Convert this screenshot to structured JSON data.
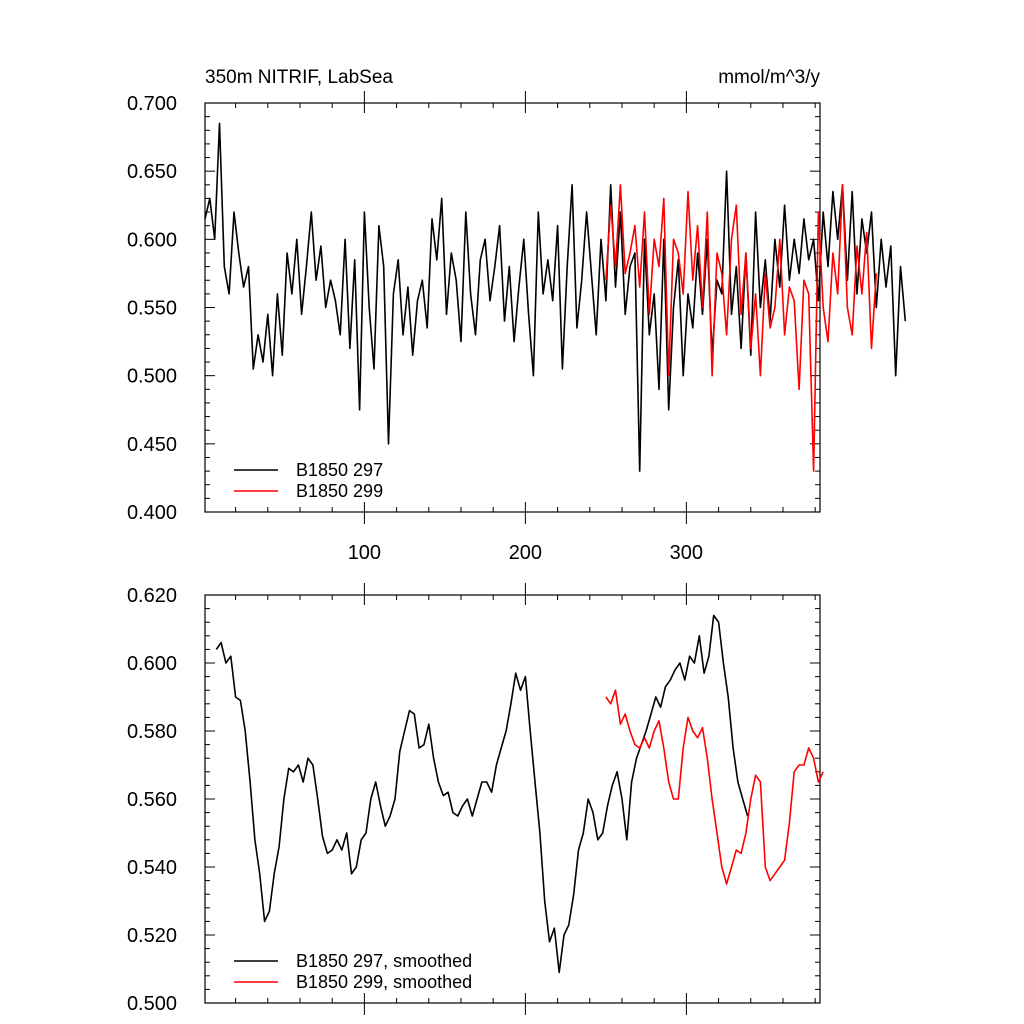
{
  "chart_data": [
    {
      "type": "line",
      "title": "350m NITRIF, LabSea",
      "units": "mmol/m^3/y",
      "xlim": [
        1,
        383
      ],
      "ylim": [
        0.4,
        0.7
      ],
      "xticks": [
        100,
        200,
        300
      ],
      "xtick_labels": [
        "100",
        "200",
        "300"
      ],
      "yticks": [
        0.4,
        0.45,
        0.5,
        0.55,
        0.6,
        0.65,
        0.7
      ],
      "ytick_labels": [
        "0.400",
        "0.450",
        "0.500",
        "0.550",
        "0.600",
        "0.650",
        "0.700"
      ],
      "legend_position": "bottom-left",
      "series": [
        {
          "name": "B1850 297",
          "color": "#000000",
          "x_start": 1,
          "x_step": 3,
          "values": [
            0.615,
            0.63,
            0.6,
            0.685,
            0.58,
            0.56,
            0.62,
            0.59,
            0.565,
            0.58,
            0.505,
            0.53,
            0.51,
            0.545,
            0.5,
            0.56,
            0.515,
            0.59,
            0.56,
            0.6,
            0.545,
            0.58,
            0.62,
            0.57,
            0.595,
            0.55,
            0.57,
            0.555,
            0.53,
            0.6,
            0.52,
            0.585,
            0.475,
            0.62,
            0.55,
            0.505,
            0.61,
            0.58,
            0.45,
            0.56,
            0.585,
            0.53,
            0.565,
            0.515,
            0.555,
            0.57,
            0.535,
            0.615,
            0.585,
            0.63,
            0.545,
            0.59,
            0.57,
            0.525,
            0.62,
            0.56,
            0.53,
            0.585,
            0.6,
            0.555,
            0.58,
            0.61,
            0.54,
            0.58,
            0.525,
            0.565,
            0.6,
            0.545,
            0.5,
            0.62,
            0.56,
            0.585,
            0.555,
            0.61,
            0.505,
            0.58,
            0.64,
            0.535,
            0.57,
            0.62,
            0.575,
            0.53,
            0.6,
            0.555,
            0.64,
            0.565,
            0.62,
            0.545,
            0.58,
            0.59,
            0.43,
            0.6,
            0.53,
            0.56,
            0.49,
            0.6,
            0.475,
            0.55,
            0.585,
            0.5,
            0.56,
            0.535,
            0.59,
            0.545,
            0.6,
            0.515,
            0.57,
            0.56,
            0.65,
            0.545,
            0.58,
            0.52,
            0.59,
            0.515,
            0.62,
            0.55,
            0.585,
            0.54,
            0.6,
            0.565,
            0.625,
            0.57,
            0.6,
            0.575,
            0.615,
            0.585,
            0.6,
            0.555,
            0.62,
            0.58,
            0.635,
            0.6,
            0.64,
            0.57,
            0.635,
            0.56,
            0.615,
            0.59,
            0.62,
            0.55,
            0.6,
            0.565,
            0.595,
            0.5,
            0.58,
            0.54
          ]
        },
        {
          "name": "B1850 299",
          "color": "#ff0000",
          "x_start": 250,
          "x_step": 3,
          "values": [
            0.57,
            0.625,
            0.58,
            0.64,
            0.575,
            0.59,
            0.61,
            0.565,
            0.62,
            0.545,
            0.6,
            0.58,
            0.63,
            0.5,
            0.6,
            0.59,
            0.56,
            0.635,
            0.57,
            0.61,
            0.55,
            0.62,
            0.5,
            0.59,
            0.575,
            0.53,
            0.6,
            0.625,
            0.545,
            0.59,
            0.52,
            0.56,
            0.5,
            0.575,
            0.535,
            0.55,
            0.6,
            0.53,
            0.565,
            0.555,
            0.49,
            0.57,
            0.56,
            0.43,
            0.62,
            0.55,
            0.525,
            0.59,
            0.56,
            0.64,
            0.55,
            0.53,
            0.595,
            0.56,
            0.605,
            0.52,
            0.575
          ]
        }
      ]
    },
    {
      "type": "line",
      "title": "",
      "xlim": [
        1,
        383
      ],
      "ylim": [
        0.5,
        0.62
      ],
      "xticks": [
        100,
        200,
        300
      ],
      "yticks": [
        0.5,
        0.52,
        0.54,
        0.56,
        0.58,
        0.6,
        0.62
      ],
      "ytick_labels": [
        "0.500",
        "0.520",
        "0.540",
        "0.560",
        "0.580",
        "0.600",
        "0.620"
      ],
      "legend_position": "bottom-left",
      "series": [
        {
          "name": "B1850 297, smoothed",
          "color": "#000000",
          "x_start": 8,
          "x_step": 3,
          "values": [
            0.604,
            0.606,
            0.6,
            0.602,
            0.59,
            0.589,
            0.58,
            0.565,
            0.548,
            0.538,
            0.524,
            0.527,
            0.538,
            0.546,
            0.56,
            0.569,
            0.568,
            0.57,
            0.565,
            0.572,
            0.57,
            0.56,
            0.549,
            0.544,
            0.545,
            0.548,
            0.545,
            0.55,
            0.538,
            0.54,
            0.548,
            0.55,
            0.56,
            0.565,
            0.558,
            0.552,
            0.555,
            0.56,
            0.574,
            0.58,
            0.586,
            0.585,
            0.575,
            0.576,
            0.582,
            0.572,
            0.565,
            0.561,
            0.562,
            0.556,
            0.555,
            0.558,
            0.56,
            0.555,
            0.56,
            0.565,
            0.565,
            0.562,
            0.57,
            0.575,
            0.58,
            0.588,
            0.597,
            0.592,
            0.596,
            0.58,
            0.565,
            0.55,
            0.53,
            0.518,
            0.522,
            0.509,
            0.52,
            0.523,
            0.532,
            0.545,
            0.55,
            0.56,
            0.556,
            0.548,
            0.55,
            0.558,
            0.564,
            0.568,
            0.56,
            0.548,
            0.565,
            0.572,
            0.576,
            0.58,
            0.585,
            0.59,
            0.587,
            0.593,
            0.595,
            0.598,
            0.6,
            0.595,
            0.602,
            0.6,
            0.608,
            0.597,
            0.602,
            0.614,
            0.612,
            0.6,
            0.59,
            0.575,
            0.565,
            0.56,
            0.555
          ]
        },
        {
          "name": "B1850 299, smoothed",
          "color": "#ff0000",
          "x_start": 250,
          "x_step": 3,
          "values": [
            0.59,
            0.588,
            0.592,
            0.582,
            0.585,
            0.58,
            0.576,
            0.575,
            0.578,
            0.575,
            0.58,
            0.583,
            0.575,
            0.565,
            0.56,
            0.56,
            0.575,
            0.584,
            0.58,
            0.578,
            0.581,
            0.572,
            0.56,
            0.55,
            0.54,
            0.535,
            0.54,
            0.545,
            0.544,
            0.55,
            0.56,
            0.567,
            0.565,
            0.54,
            0.536,
            0.538,
            0.54,
            0.542,
            0.553,
            0.568,
            0.57,
            0.57,
            0.575,
            0.572,
            0.565,
            0.568
          ]
        }
      ]
    }
  ]
}
